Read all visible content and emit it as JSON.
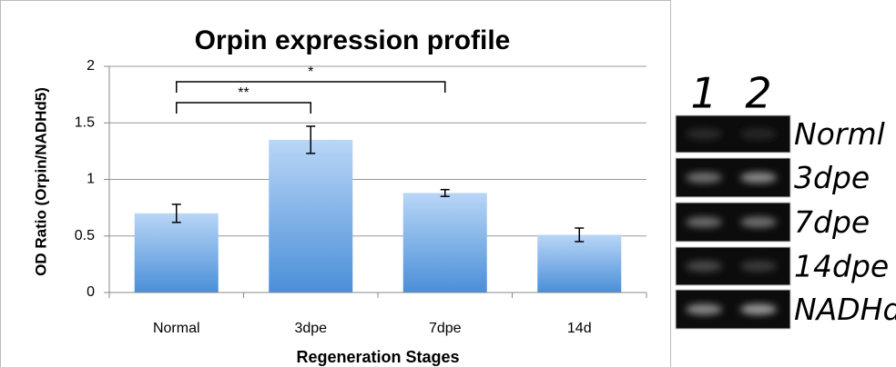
{
  "chart_data": {
    "type": "bar",
    "title": "Orpin expression profile",
    "xlabel": "Regeneration Stages",
    "ylabel": "OD Ratio (Orpin/NADHd5)",
    "categories": [
      "Normal",
      "3dpe",
      "7dpe",
      "14d"
    ],
    "values": [
      0.7,
      1.35,
      0.88,
      0.51
    ],
    "errors": [
      0.08,
      0.12,
      0.03,
      0.06
    ],
    "ylim": [
      0,
      2
    ],
    "yticks": [
      0,
      0.5,
      1,
      1.5,
      2
    ],
    "grid": true,
    "color": "#5b9bd5",
    "annotations": [
      {
        "text": "**"
      },
      {
        "text": "*"
      }
    ]
  },
  "gel": {
    "lanes": [
      "1",
      "2"
    ],
    "rows": [
      "Norml",
      "3dpe",
      "7dpe",
      "14dpe",
      "NADHd"
    ]
  }
}
